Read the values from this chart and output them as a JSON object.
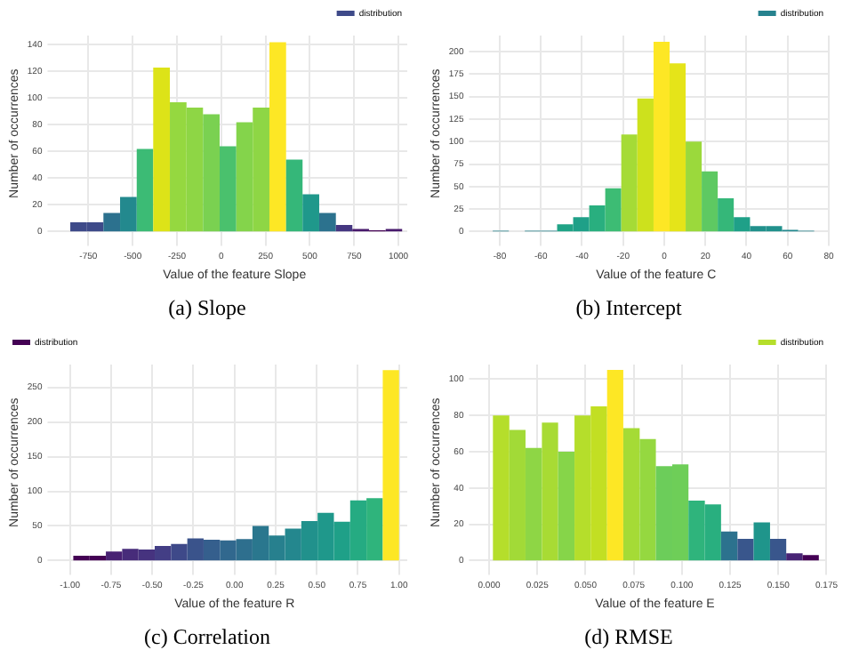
{
  "chart_data": [
    {
      "type": "histogram",
      "title": "(a) Slope",
      "xlabel": "Value of the feature Slope",
      "ylabel": "Number of occurrences",
      "bins": [
        -852,
        -758,
        -665,
        -571,
        -477,
        -384,
        -290,
        -196,
        -103,
        -9,
        85,
        178,
        272,
        366,
        459,
        553,
        647,
        740,
        834,
        928,
        1021
      ],
      "series": [
        {
          "name": "distribution",
          "color": "#3e4a89",
          "colors": [
            "#3e4a89",
            "#3e4a89",
            "#2c718e",
            "#23898e",
            "#3cbb75",
            "#dde318",
            "#95d840",
            "#8ed645",
            "#7ad151",
            "#4ac16d",
            "#84d44b",
            "#8ed645",
            "#fde725",
            "#35b779",
            "#1f988b",
            "#2c728e",
            "#453781",
            "#481a6c",
            "#440154",
            "#481a6c"
          ],
          "values": [
            7,
            7,
            14,
            26,
            62,
            123,
            97,
            93,
            88,
            64,
            82,
            93,
            142,
            54,
            28,
            14,
            5,
            2,
            1,
            2
          ]
        }
      ],
      "xlim": [
        -900,
        1050
      ],
      "ylim": [
        0,
        147
      ],
      "xticks": [
        -750,
        -500,
        -250,
        0,
        250,
        500,
        750,
        1000
      ],
      "yticks": [
        0,
        20,
        40,
        60,
        80,
        100,
        120,
        140
      ],
      "grid": true,
      "legend": "top right"
    },
    {
      "type": "histogram",
      "title": "(b) Intercept",
      "xlabel": "Value of the feature C",
      "ylabel": "Number of occurrences",
      "bins": [
        -83.4,
        -75.6,
        -67.8,
        -59.9,
        -52.1,
        -44.3,
        -36.5,
        -28.7,
        -20.9,
        -13.1,
        -5.2,
        2.6,
        10.4,
        18.2,
        26.0,
        33.8,
        41.7,
        49.5,
        57.3,
        65.1,
        72.9
      ],
      "series": [
        {
          "name": "distribution",
          "color": "#26828e",
          "colors": [
            "#26828e",
            "#26828e",
            "#26828e",
            "#26828e",
            "#20a386",
            "#1fa088",
            "#29af7f",
            "#3dbc74",
            "#a5db36",
            "#cde11d",
            "#fde725",
            "#e5e419",
            "#9bd93c",
            "#5ec962",
            "#35b779",
            "#1fa088",
            "#21918c",
            "#21918c",
            "#23888e",
            "#26828e"
          ],
          "values": [
            1,
            0,
            1,
            1,
            8,
            16,
            29,
            48,
            108,
            148,
            211,
            187,
            100,
            67,
            37,
            16,
            6,
            6,
            2,
            1
          ]
        }
      ],
      "xlim": [
        -88,
        80
      ],
      "ylim": [
        0,
        218
      ],
      "xticks": [
        -80,
        -60,
        -40,
        -20,
        0,
        20,
        40,
        60,
        80
      ],
      "yticks": [
        0,
        25,
        50,
        75,
        100,
        125,
        150,
        175,
        200
      ],
      "grid": true,
      "legend": "top right"
    },
    {
      "type": "histogram",
      "title": "(c) Correlation",
      "xlabel": "Value of the feature R",
      "ylabel": "Number of occurrences",
      "bins": [
        -0.98,
        -0.881,
        -0.782,
        -0.683,
        -0.584,
        -0.485,
        -0.386,
        -0.287,
        -0.188,
        -0.089,
        0.01,
        0.109,
        0.208,
        0.307,
        0.406,
        0.505,
        0.604,
        0.703,
        0.802,
        0.901,
        1.0
      ],
      "series": [
        {
          "name": "distribution",
          "color": "#440154",
          "colors": [
            "#440154",
            "#440154",
            "#482173",
            "#472c7a",
            "#46337f",
            "#433e85",
            "#3e4989",
            "#3a538b",
            "#355f8d",
            "#31688e",
            "#2e6f8e",
            "#2a778e",
            "#27808e",
            "#24878e",
            "#21918c",
            "#1f988b",
            "#1fa088",
            "#25ab82",
            "#2fb47c",
            "#fde725"
          ],
          "values": [
            7,
            7,
            13,
            17,
            16,
            21,
            24,
            32,
            30,
            29,
            31,
            50,
            36,
            46,
            57,
            69,
            56,
            87,
            90,
            275
          ]
        }
      ],
      "xlim": [
        -1.05,
        1.05
      ],
      "ylim": [
        0,
        283
      ],
      "xticks": [
        {
          "value": -1,
          "label": "-1.00"
        },
        {
          "value": -0.75,
          "label": "-0.75"
        },
        {
          "value": -0.5,
          "label": "-0.50"
        },
        {
          "value": -0.25,
          "label": "-0.25"
        },
        {
          "value": 0,
          "label": "0.00"
        },
        {
          "value": 0.25,
          "label": "0.25"
        },
        {
          "value": 0.5,
          "label": "0.50"
        },
        {
          "value": 0.75,
          "label": "0.75"
        },
        {
          "value": 1,
          "label": "1.00"
        }
      ],
      "yticks": [
        0,
        50,
        100,
        150,
        200,
        250
      ],
      "grid": true,
      "legend": "top left"
    },
    {
      "type": "histogram",
      "title": "(d) RMSE",
      "xlabel": "Value of the feature E",
      "ylabel": "Number of occurrences",
      "bins": [
        0.002,
        0.0105,
        0.0189,
        0.0274,
        0.0358,
        0.0443,
        0.0527,
        0.0612,
        0.0696,
        0.0781,
        0.0865,
        0.095,
        0.1034,
        0.1119,
        0.1203,
        0.1288,
        0.1372,
        0.1457,
        0.1541,
        0.1626,
        0.171
      ],
      "series": [
        {
          "name": "distribution",
          "color": "#b5de2b",
          "colors": [
            "#b5de2b",
            "#a2da37",
            "#8ed645",
            "#a8db34",
            "#86d549",
            "#b5de2b",
            "#c2df23",
            "#fde725",
            "#a5db36",
            "#95d840",
            "#6ccd5a",
            "#6ece58",
            "#2fb47c",
            "#29af7f",
            "#2c728e",
            "#39568c",
            "#1f958b",
            "#39568c",
            "#482475",
            "#440154"
          ],
          "values": [
            80,
            72,
            62,
            76,
            60,
            80,
            85,
            105,
            73,
            67,
            52,
            53,
            33,
            31,
            16,
            12,
            21,
            12,
            4,
            3
          ]
        }
      ],
      "xlim": [
        -0.003,
        0.175
      ],
      "ylim": [
        0,
        108
      ],
      "xticks": [
        {
          "value": 0,
          "label": "0.000"
        },
        {
          "value": 0.025,
          "label": "0.025"
        },
        {
          "value": 0.05,
          "label": "0.050"
        },
        {
          "value": 0.075,
          "label": "0.075"
        },
        {
          "value": 0.1,
          "label": "0.100"
        },
        {
          "value": 0.125,
          "label": "0.125"
        },
        {
          "value": 0.15,
          "label": "0.150"
        },
        {
          "value": 0.175,
          "label": "0.175"
        }
      ],
      "yticks": [
        0,
        20,
        40,
        60,
        80,
        100
      ],
      "grid": true,
      "legend": "top right"
    }
  ]
}
